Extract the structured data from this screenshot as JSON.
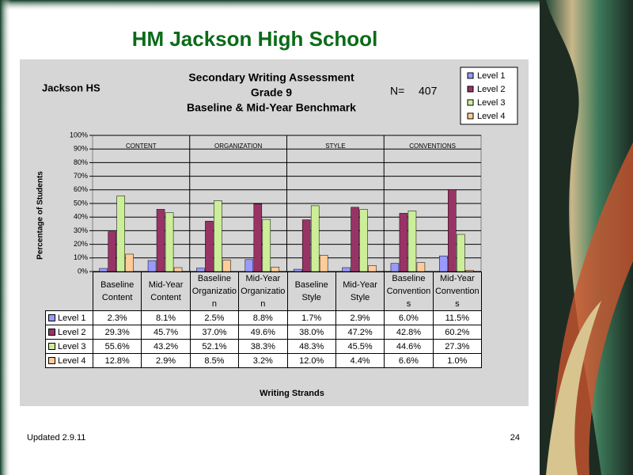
{
  "slide": {
    "title": "HM Jackson High School",
    "footer": "Updated 2.9.11",
    "page": 24
  },
  "chart_data": {
    "type": "bar",
    "title": [
      "Secondary Writing Assessment",
      "Grade 9",
      "Baseline & Mid-Year Benchmark"
    ],
    "annotations": {
      "school": "Jackson HS",
      "n_label": "N=",
      "n": 407
    },
    "x_label": "Writing Strands",
    "y_label": "Percentage of Students",
    "groups": [
      "CONTENT",
      "ORGANIZATION",
      "STYLE",
      "CONVENTIONS"
    ],
    "categories": [
      "Baseline Content",
      "Mid-Year Content",
      "Baseline Organization",
      "Mid-Year Organization",
      "Baseline Style",
      "Mid-Year Style",
      "Baseline Conventions",
      "Mid-Year Conventions"
    ],
    "series": [
      {
        "name": "Level 1",
        "color": "#9999ff",
        "values": [
          2.3,
          8.1,
          2.5,
          8.8,
          1.7,
          2.9,
          6.0,
          11.5
        ],
        "value_labels": [
          "2.3%",
          "8.1%",
          "2.5%",
          "8.8%",
          "1.7%",
          "2.9%",
          "6.0%",
          "11.5%"
        ]
      },
      {
        "name": "Level 2",
        "color": "#993366",
        "values": [
          29.3,
          45.7,
          37.0,
          49.6,
          38.0,
          47.2,
          42.8,
          60.2
        ],
        "value_labels": [
          "29.3%",
          "45.7%",
          "37.0%",
          "49.6%",
          "38.0%",
          "47.2%",
          "42.8%",
          "60.2%"
        ]
      },
      {
        "name": "Level 3",
        "color": "#ccee99",
        "values": [
          55.6,
          43.2,
          52.1,
          38.3,
          48.3,
          45.5,
          44.6,
          27.3
        ],
        "value_labels": [
          "55.6%",
          "43.2%",
          "52.1%",
          "38.3%",
          "48.3%",
          "45.5%",
          "44.6%",
          "27.3%"
        ]
      },
      {
        "name": "Level 4",
        "color": "#ffcc99",
        "values": [
          12.8,
          2.9,
          8.5,
          3.2,
          12.0,
          4.4,
          6.6,
          1.0
        ],
        "value_labels": [
          "12.8%",
          "2.9%",
          "8.5%",
          "3.2%",
          "12.0%",
          "4.4%",
          "6.6%",
          "1.0%"
        ]
      }
    ],
    "ylim": [
      0,
      100
    ],
    "yticks": [
      {
        "value": 0,
        "label": "0%"
      },
      {
        "value": 10,
        "label": "10%"
      },
      {
        "value": 20,
        "label": "20%"
      },
      {
        "value": 30,
        "label": "30%"
      },
      {
        "value": 40,
        "label": "40%"
      },
      {
        "value": 50,
        "label": "50%"
      },
      {
        "value": 60,
        "label": "60%"
      },
      {
        "value": 70,
        "label": "70%"
      },
      {
        "value": 80,
        "label": "80%"
      },
      {
        "value": 90,
        "label": "90%"
      },
      {
        "value": 100,
        "label": "100%"
      }
    ],
    "grid": true,
    "legend": "top-right"
  }
}
